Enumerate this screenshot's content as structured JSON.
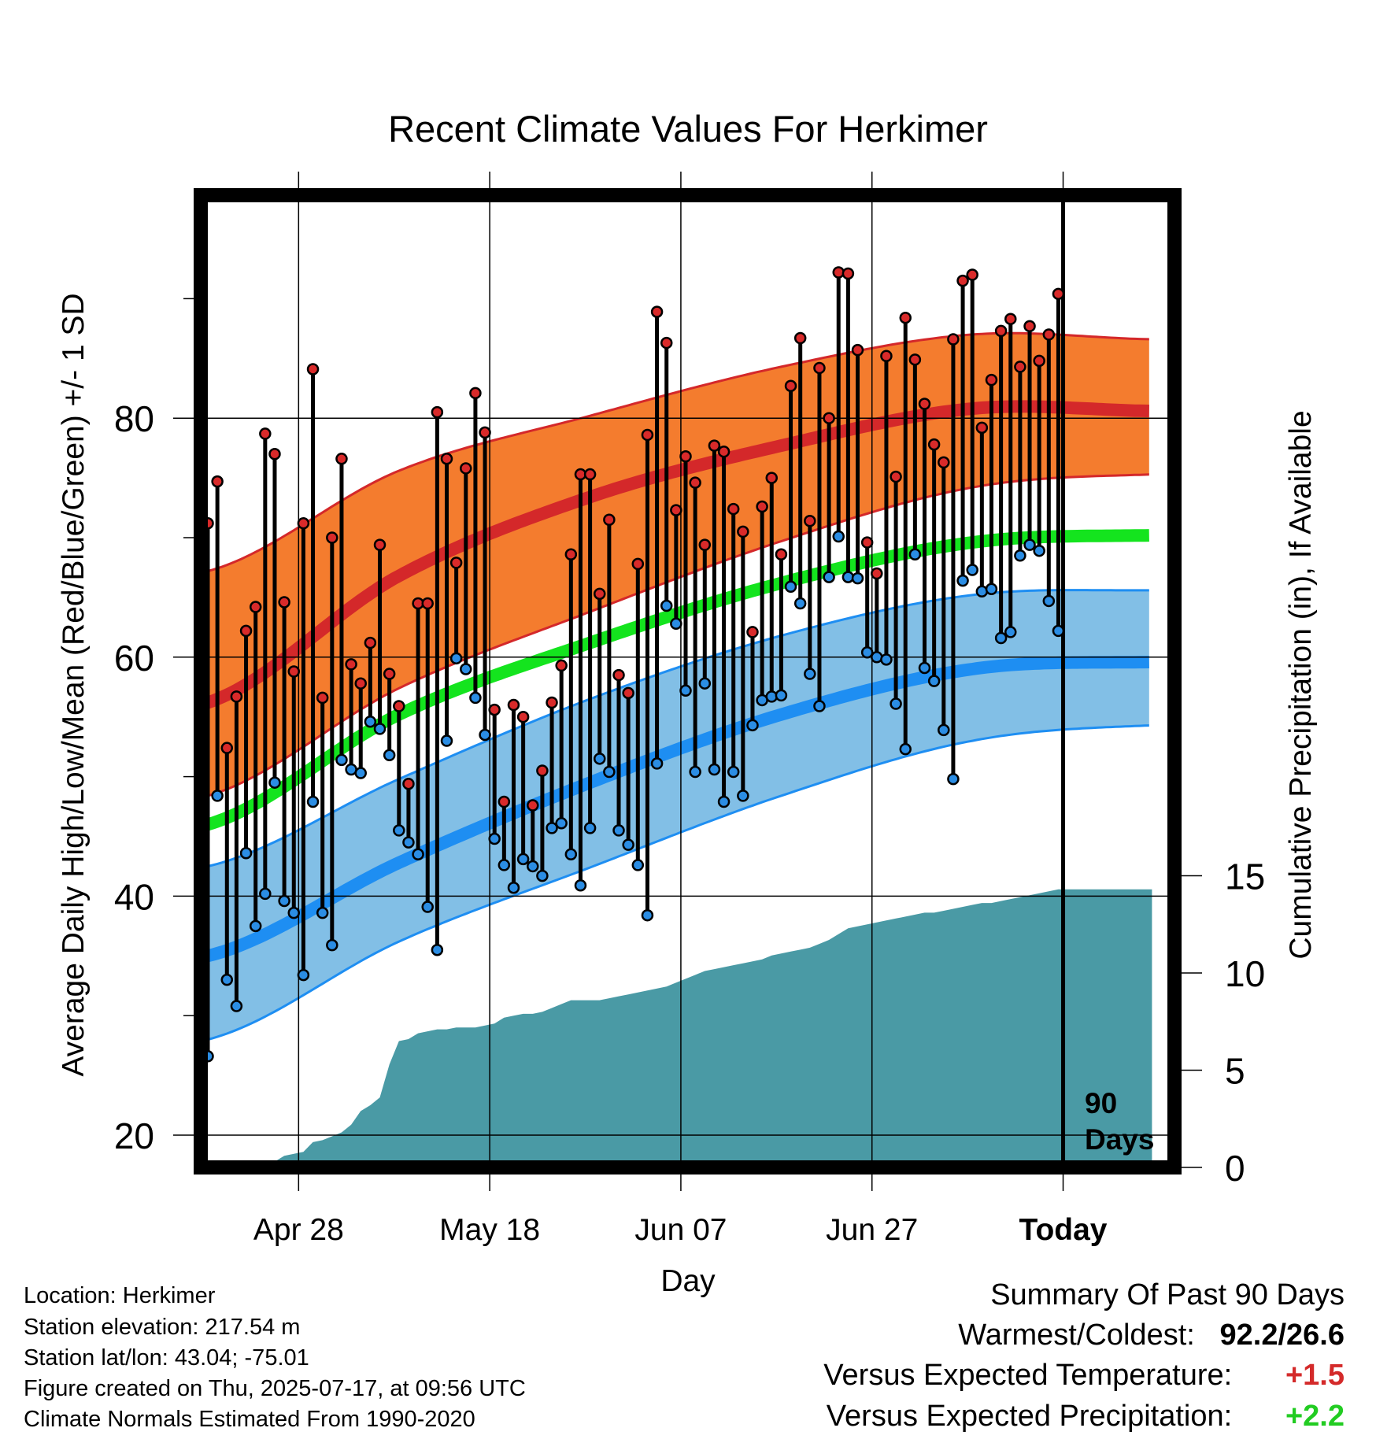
{
  "chart_data": {
    "type": "line",
    "title": "Recent Climate Values For Herkimer",
    "xlabel": "Day",
    "ylabel": "Average Daily High/Low/Mean (Red/Blue/Green) +/- 1 SD",
    "y2label": "Cumulative Precipitation (in), If Available",
    "ylim": [
      17,
      97
    ],
    "y2lim": [
      0,
      30
    ],
    "xlim": [
      0,
      99
    ],
    "x_tick_labels": [
      {
        "x": 9.5,
        "label": "Apr 28"
      },
      {
        "x": 29.5,
        "label": "May 18"
      },
      {
        "x": 49.5,
        "label": "Jun 07"
      },
      {
        "x": 69.5,
        "label": "Jun 27"
      },
      {
        "x": 89.5,
        "label": "Today"
      }
    ],
    "y_ticks": [
      20,
      40,
      60,
      80
    ],
    "y2_ticks": [
      0,
      5,
      10,
      15
    ],
    "today_marker": {
      "x": 89.5,
      "label_line1": "90",
      "label_line2": "Days"
    },
    "normal_high_mean": {
      "x": [
        0,
        20,
        40,
        60,
        80,
        99
      ],
      "y": [
        56.2,
        66.8,
        73.4,
        77.7,
        80.8,
        80.6
      ]
    },
    "normal_high_upper": {
      "x": [
        0,
        20,
        40,
        60,
        80,
        99
      ],
      "y": [
        67.2,
        75.6,
        80.2,
        84.3,
        87.0,
        86.6
      ]
    },
    "normal_high_lower": {
      "x": [
        0,
        20,
        40,
        60,
        80,
        99
      ],
      "y": [
        48.4,
        57.4,
        63.8,
        69.7,
        74.2,
        75.3
      ]
    },
    "normal_mean": {
      "x": [
        0,
        20,
        40,
        60,
        80,
        99
      ],
      "y": [
        46.0,
        55.2,
        61.2,
        66.2,
        69.6,
        70.2
      ]
    },
    "normal_low_mean": {
      "x": [
        0,
        20,
        40,
        60,
        80,
        99
      ],
      "y": [
        35.0,
        42.8,
        49.5,
        55.2,
        59.0,
        59.6
      ]
    },
    "normal_low_upper": {
      "x": [
        0,
        20,
        40,
        60,
        80,
        99
      ],
      "y": [
        42.5,
        49.8,
        56.5,
        61.8,
        65.2,
        65.6
      ]
    },
    "normal_low_lower": {
      "x": [
        0,
        20,
        40,
        60,
        80,
        99
      ],
      "y": [
        28.0,
        36.2,
        42.4,
        48.4,
        53.0,
        54.3
      ]
    },
    "series": [
      {
        "name": "Daily High",
        "values": [
          71.2,
          74.7,
          52.4,
          56.7,
          62.2,
          64.2,
          78.7,
          77.0,
          64.6,
          58.8,
          71.2,
          84.1,
          56.6,
          70.0,
          76.6,
          59.4,
          57.8,
          61.2,
          69.4,
          58.6,
          55.9,
          49.4,
          64.5,
          64.5,
          80.5,
          76.6,
          67.9,
          75.8,
          82.1,
          78.8,
          55.6,
          47.9,
          56.0,
          55.0,
          47.6,
          50.5,
          56.2,
          59.3,
          68.6,
          75.3,
          75.3,
          65.3,
          71.5,
          58.5,
          57.0,
          67.8,
          78.6,
          88.9,
          86.3,
          72.3,
          76.8,
          74.6,
          69.4,
          77.7,
          77.2,
          72.4,
          70.5,
          62.1,
          72.6,
          75.0,
          68.6,
          82.7,
          86.7,
          71.4,
          84.2,
          80.0,
          92.2,
          92.1,
          85.7,
          69.6,
          67.0,
          85.2,
          75.1,
          88.4,
          84.9,
          81.2,
          77.8,
          76.3,
          86.6,
          91.5,
          92.0,
          79.2,
          83.2,
          87.3,
          88.3,
          84.3,
          87.7,
          84.8,
          87.0,
          90.4
        ]
      },
      {
        "name": "Daily Low",
        "values": [
          26.6,
          48.4,
          33.0,
          30.8,
          43.6,
          37.5,
          40.2,
          49.5,
          39.6,
          38.6,
          33.4,
          47.9,
          38.6,
          35.9,
          51.4,
          50.6,
          50.3,
          54.6,
          54.0,
          51.8,
          45.5,
          44.5,
          43.5,
          39.1,
          35.5,
          53.0,
          59.9,
          59.0,
          56.6,
          53.5,
          44.8,
          42.6,
          40.7,
          43.1,
          42.5,
          41.7,
          45.7,
          46.1,
          43.5,
          40.9,
          45.7,
          51.5,
          50.4,
          45.5,
          44.3,
          42.6,
          38.4,
          51.1,
          64.3,
          62.8,
          57.2,
          50.4,
          57.8,
          50.6,
          47.9,
          50.4,
          48.4,
          54.3,
          56.4,
          56.7,
          56.8,
          65.9,
          64.5,
          58.6,
          55.9,
          66.7,
          70.1,
          66.7,
          66.6,
          60.4,
          60.0,
          59.8,
          56.1,
          52.3,
          68.6,
          59.1,
          58.0,
          53.9,
          49.8,
          66.4,
          67.3,
          65.5,
          65.7,
          61.6,
          62.1,
          68.5,
          69.4,
          68.9,
          64.7,
          62.2
        ]
      },
      {
        "name": "Cumulative Precipitation",
        "values": [
          0.0,
          0.0,
          0.1,
          0.2,
          0.2,
          0.2,
          0.2,
          0.3,
          0.6,
          0.7,
          0.8,
          1.3,
          1.4,
          1.6,
          1.8,
          2.2,
          2.9,
          3.2,
          3.6,
          5.3,
          6.5,
          6.6,
          6.9,
          7.0,
          7.1,
          7.1,
          7.2,
          7.2,
          7.2,
          7.3,
          7.4,
          7.7,
          7.8,
          7.9,
          7.9,
          8.0,
          8.2,
          8.4,
          8.6,
          8.6,
          8.6,
          8.6,
          8.7,
          8.8,
          8.9,
          9.0,
          9.1,
          9.2,
          9.3,
          9.5,
          9.7,
          9.9,
          10.1,
          10.2,
          10.3,
          10.4,
          10.5,
          10.6,
          10.7,
          10.9,
          11.0,
          11.1,
          11.2,
          11.3,
          11.5,
          11.7,
          12.0,
          12.3,
          12.4,
          12.5,
          12.6,
          12.7,
          12.8,
          12.9,
          13.0,
          13.1,
          13.1,
          13.2,
          13.3,
          13.4,
          13.5,
          13.6,
          13.6,
          13.7,
          13.8,
          13.9,
          14.0,
          14.1,
          14.2,
          14.3
        ]
      }
    ]
  },
  "colors": {
    "high_band": "#f47c2e",
    "high_line": "#d4282a",
    "low_band": "#82bfe6",
    "low_line": "#1e8ef2",
    "mean_line": "#14e41e",
    "precip": "#4a9aa5",
    "high_dot": "#d92a2a",
    "low_dot": "#2b8de4",
    "plus_temp": "#d42a2a",
    "plus_precip": "#22cc22"
  },
  "meta": {
    "location": "Location: Herkimer",
    "elevation": "Station elevation: 217.54 m",
    "latlon": "Station lat/lon: 43.04; -75.01",
    "created": "Figure created on Thu, 2025-07-17, at 09:56 UTC",
    "normals": "Climate Normals Estimated From 1990-2020"
  },
  "summary": {
    "title": "Summary Of Past 90 Days",
    "warm_cold_label": "Warmest/Coldest:",
    "warm_cold_value": "92.2/26.6",
    "temp_label": "Versus Expected Temperature:",
    "temp_value": "+1.5",
    "precip_label": "Versus Expected Precipitation:",
    "precip_value": "+2.2"
  }
}
